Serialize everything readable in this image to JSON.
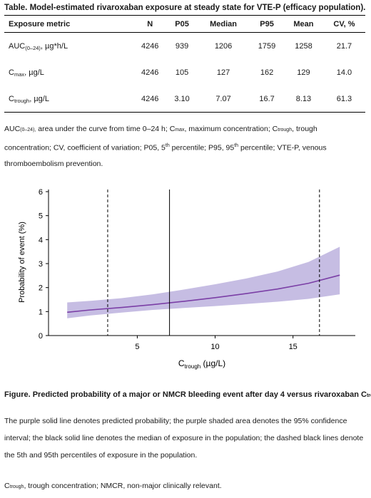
{
  "table": {
    "title": "Table. Model-estimated rivaroxaban exposure at steady state for VTE-P (efficacy population).",
    "headers": [
      "Exposure metric",
      "N",
      "P05",
      "Median",
      "P95",
      "Mean",
      "CV, %"
    ],
    "rows": [
      {
        "metric_main": "AUC",
        "metric_sub": "(0–24)",
        "metric_unit": ", µg*h/L",
        "values": [
          "4246",
          "939",
          "1206",
          "1759",
          "1258",
          "21.7"
        ]
      },
      {
        "metric_main": "C",
        "metric_sub": "max",
        "metric_unit": ", µg/L",
        "values": [
          "4246",
          "105",
          "127",
          "162",
          "129",
          "14.0"
        ]
      },
      {
        "metric_main": "C",
        "metric_sub": "trough",
        "metric_unit": ", µg/L",
        "values": [
          "4246",
          "3.10",
          "7.07",
          "16.7",
          "8.13",
          "61.3"
        ]
      }
    ],
    "notes": {
      "auc": "AUC",
      "auc_sub": "(0–24),",
      "auc_def": " area under the curve from time 0–24 h; C",
      "cmax_sub": "max",
      "cmax_def": ", maximum concentration; C",
      "ctrough_sub": "trough",
      "ctrough_def": ", trough concentration; CV, coefficient of variation; P05, 5",
      "th1": "th",
      "p95_def": " percentile; P95, 95",
      "th2": "th",
      "tail": " percentile; VTE-P, venous thromboembolism prevention."
    }
  },
  "chart_data": {
    "type": "line",
    "xlabel_main": "C",
    "xlabel_sub": "trough",
    "xlabel_unit": " (µg/L)",
    "ylabel": "Probability of event (%)",
    "xlim": [
      -0.7,
      19
    ],
    "ylim": [
      0,
      6
    ],
    "xticks": [
      5,
      10,
      15
    ],
    "yticks": [
      0,
      1,
      2,
      3,
      4,
      5,
      6
    ],
    "series": [
      {
        "role": "predicted probability",
        "color": "#7b3fa6",
        "x": [
          0.5,
          2,
          4,
          6,
          8,
          10,
          12,
          14,
          16,
          18
        ],
        "y": [
          0.97,
          1.07,
          1.17,
          1.29,
          1.43,
          1.58,
          1.75,
          1.94,
          2.18,
          2.52
        ]
      }
    ],
    "band": {
      "role": "95% confidence interval",
      "color": "#b3a7d9",
      "x": [
        0.5,
        2,
        4,
        6,
        8,
        10,
        12,
        14,
        16,
        18
      ],
      "lower": [
        0.72,
        0.84,
        0.96,
        1.07,
        1.15,
        1.23,
        1.32,
        1.41,
        1.53,
        1.72
      ],
      "upper": [
        1.38,
        1.45,
        1.56,
        1.72,
        1.92,
        2.14,
        2.38,
        2.67,
        3.07,
        3.7
      ]
    },
    "reference_lines": [
      {
        "role": "P05",
        "x": 3.1,
        "style": "dashed"
      },
      {
        "role": "median",
        "x": 7.07,
        "style": "solid"
      },
      {
        "role": "P95",
        "x": 16.7,
        "style": "dashed"
      }
    ]
  },
  "figure": {
    "title_main": "Figure. Predicted probability of a major or NMCR bleeding event after day 4 versus rivaroxaban C",
    "title_sub": "trough",
    "title_end": ".",
    "notes": "The purple solid line denotes predicted probability; the purple shaded area denotes the 95% confidence interval; the black solid line denotes the median of exposure in the population; the dashed black lines denote the 5th and 95th percentiles of exposure in the population.",
    "abbrev_main": "C",
    "abbrev_sub": "trough",
    "abbrev_rest": ", trough concentration; NMCR, non-major clinically relevant."
  }
}
